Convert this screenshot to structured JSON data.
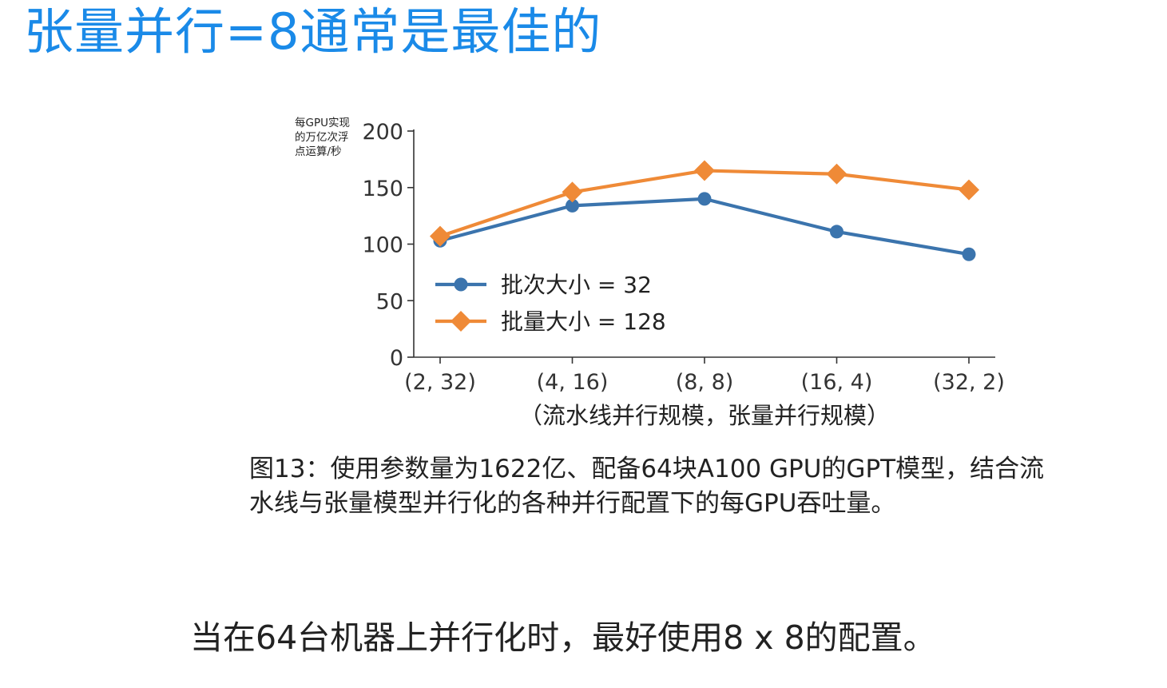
{
  "slide": {
    "title": "张量并行=8通常是最佳的",
    "caption": "图13：使用参数量为1622亿、配备64块A100 GPU的GPT模型，结合流水线与张量模型并行化的各种并行配置下的每GPU吞吐量。",
    "note": "当在64台机器上并行化时，最好使用8 x 8的配置。",
    "accent_color": "#1a8ae8"
  },
  "chart_data": {
    "type": "line",
    "ylabel_lines": [
      "每GPU实现",
      "的万亿次浮",
      "点运算/秒"
    ],
    "xlabel": "（流水线并行规模，张量并行规模）",
    "categories": [
      "(2, 32)",
      "(4, 16)",
      "(8, 8)",
      "(16, 4)",
      "(32, 2)"
    ],
    "ylim": [
      0,
      200
    ],
    "yticks": [
      0,
      50,
      100,
      150,
      200
    ],
    "grid": false,
    "legend_position": "bottom-left",
    "series": [
      {
        "name": "批次大小 = 32",
        "values": [
          103,
          134,
          140,
          111,
          91
        ],
        "color": "#3b74ad",
        "marker": "circle"
      },
      {
        "name": "批量大小 = 128",
        "values": [
          107,
          146,
          165,
          162,
          148
        ],
        "color": "#ef8a37",
        "marker": "diamond"
      }
    ]
  }
}
